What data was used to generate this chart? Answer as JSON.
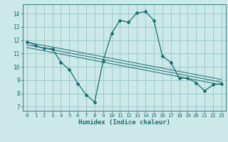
{
  "title": "",
  "xlabel": "Humidex (Indice chaleur)",
  "bg_color": "#cce8e8",
  "grid_color": "#99cccc",
  "line_color": "#1a6e6e",
  "xlim": [
    -0.5,
    23.5
  ],
  "ylim": [
    6.7,
    14.7
  ],
  "yticks": [
    7,
    8,
    9,
    10,
    11,
    12,
    13,
    14
  ],
  "xticks": [
    0,
    1,
    2,
    3,
    4,
    5,
    6,
    7,
    8,
    9,
    10,
    11,
    12,
    13,
    14,
    15,
    16,
    17,
    18,
    19,
    20,
    21,
    22,
    23
  ],
  "main_line": {
    "x": [
      0,
      1,
      2,
      3,
      4,
      5,
      6,
      7,
      8,
      9,
      10,
      11,
      12,
      13,
      14,
      15,
      16,
      17,
      18,
      19,
      20,
      21,
      22,
      23
    ],
    "y": [
      11.9,
      11.6,
      11.4,
      11.35,
      10.35,
      9.8,
      8.75,
      7.9,
      7.35,
      10.45,
      12.5,
      13.5,
      13.35,
      14.05,
      14.15,
      13.5,
      10.8,
      10.35,
      9.15,
      9.15,
      8.8,
      8.2,
      8.65,
      8.75
    ]
  },
  "trend_lines": [
    {
      "x": [
        0,
        23
      ],
      "y": [
        11.85,
        9.05
      ]
    },
    {
      "x": [
        0,
        23
      ],
      "y": [
        11.65,
        8.85
      ]
    },
    {
      "x": [
        0,
        23
      ],
      "y": [
        11.45,
        8.65
      ]
    }
  ]
}
